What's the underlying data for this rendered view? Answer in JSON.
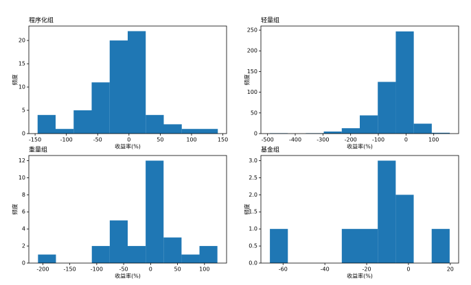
{
  "chart_data": [
    {
      "type": "histogram",
      "title": "程序化组",
      "xlabel": "收益率(%)",
      "ylabel": "频度",
      "color": "#1f77b4",
      "bins": [
        -146,
        -117.2,
        -88.4,
        -59.6,
        -30.8,
        -2,
        26.8,
        55.6,
        84.4,
        113.2,
        142
      ],
      "values": [
        4,
        1,
        5,
        11,
        20,
        22,
        4,
        2,
        1,
        1
      ],
      "xlim": [
        -160,
        156
      ],
      "ylim": [
        0,
        23.1
      ],
      "xticks": [
        -150,
        -100,
        -50,
        0,
        50,
        100,
        150
      ],
      "yticks": [
        0,
        5,
        10,
        15,
        20
      ]
    },
    {
      "type": "histogram",
      "title": "轻量组",
      "xlabel": "收益率(%)",
      "ylabel": "频度",
      "color": "#1f77b4",
      "bins": [
        -492,
        -427,
        -362,
        -297,
        -232,
        -167,
        -102,
        -37,
        28,
        93,
        158
      ],
      "values": [
        1,
        0,
        1,
        5,
        13,
        44,
        125,
        247,
        24,
        2
      ],
      "xlim": [
        -524,
        190
      ],
      "ylim": [
        0,
        260
      ],
      "xticks": [
        -500,
        -400,
        -300,
        -200,
        -100,
        0,
        100
      ],
      "yticks": [
        0,
        50,
        100,
        150,
        200,
        250
      ]
    },
    {
      "type": "histogram",
      "title": "重量组",
      "xlabel": "收益率(%)",
      "ylabel": "频度",
      "color": "#1f77b4",
      "bins": [
        -209,
        -175.7,
        -142.4,
        -109.1,
        -75.8,
        -42.5,
        -9.2,
        24.1,
        57.4,
        90.7,
        124
      ],
      "values": [
        1,
        0,
        0,
        2,
        5,
        2,
        12,
        3,
        1,
        2
      ],
      "xlim": [
        -226,
        141
      ],
      "ylim": [
        0,
        12.6
      ],
      "xticks": [
        -200,
        -150,
        -100,
        -50,
        0,
        50,
        100
      ],
      "yticks": [
        0,
        2,
        4,
        6,
        8,
        10,
        12
      ]
    },
    {
      "type": "histogram",
      "title": "基金组",
      "xlabel": "收益率(%)",
      "ylabel": "频度",
      "color": "#1f77b4",
      "bins": [
        -66.3,
        -57.7,
        -49.1,
        -40.5,
        -31.9,
        -23.3,
        -14.7,
        -6.1,
        2.5,
        11.1,
        19.7
      ],
      "values": [
        1,
        0,
        0,
        0,
        1,
        1,
        3,
        2,
        0,
        1
      ],
      "xlim": [
        -70.6,
        24
      ],
      "ylim": [
        0,
        3.15
      ],
      "xticks": [
        -60,
        -40,
        -20,
        0,
        20
      ],
      "yticks": [
        {
          "value": 0,
          "label": "0.0"
        },
        {
          "value": 0.5,
          "label": "0.5"
        },
        {
          "value": 1,
          "label": "1.0"
        },
        {
          "value": 1.5,
          "label": "1.5"
        },
        {
          "value": 2,
          "label": "2.0"
        },
        {
          "value": 2.5,
          "label": "2.5"
        },
        {
          "value": 3,
          "label": "3.0"
        }
      ]
    }
  ]
}
